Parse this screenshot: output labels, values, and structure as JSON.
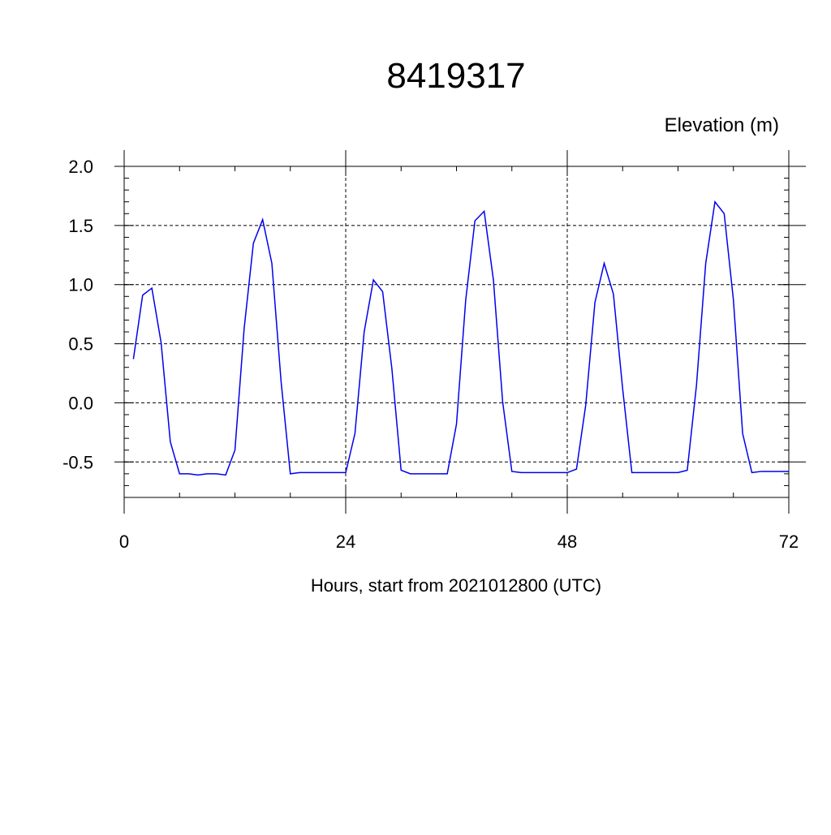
{
  "chart_data": {
    "type": "line",
    "title": "8419317",
    "y_label": "Elevation (m)",
    "x_label": "Hours, start from 2021012800 (UTC)",
    "x": [
      1,
      2,
      3,
      4,
      5,
      6,
      7,
      8,
      9,
      10,
      11,
      12,
      13,
      14,
      15,
      16,
      17,
      18,
      19,
      20,
      21,
      22,
      23,
      24,
      25,
      26,
      27,
      28,
      29,
      30,
      31,
      32,
      33,
      34,
      35,
      36,
      37,
      38,
      39,
      40,
      41,
      42,
      43,
      44,
      45,
      46,
      47,
      48,
      49,
      50,
      51,
      52,
      53,
      54,
      55,
      56,
      57,
      58,
      59,
      60,
      61,
      62,
      63,
      64,
      65,
      66,
      67,
      68,
      69,
      70,
      71,
      72
    ],
    "series": [
      {
        "color": "#0000ee",
        "values": [
          0.37,
          0.91,
          0.97,
          0.51,
          -0.33,
          -0.6,
          -0.6,
          -0.61,
          -0.6,
          -0.6,
          -0.61,
          -0.4,
          0.63,
          1.35,
          1.55,
          1.18,
          0.18,
          -0.6,
          -0.59,
          -0.59,
          -0.59,
          -0.59,
          -0.59,
          -0.59,
          -0.26,
          0.6,
          1.04,
          0.94,
          0.29,
          -0.57,
          -0.6,
          -0.6,
          -0.6,
          -0.6,
          -0.6,
          -0.18,
          0.87,
          1.54,
          1.62,
          1.04,
          0.01,
          -0.58,
          -0.59,
          -0.59,
          -0.59,
          -0.59,
          -0.59,
          -0.59,
          -0.56,
          -0.02,
          0.85,
          1.18,
          0.92,
          0.12,
          -0.59,
          -0.59,
          -0.59,
          -0.59,
          -0.59,
          -0.59,
          -0.57,
          0.15,
          1.18,
          1.7,
          1.6,
          0.87,
          -0.26,
          -0.59,
          -0.58,
          -0.58,
          -0.58,
          -0.58
        ]
      }
    ],
    "xlim": [
      0,
      72
    ],
    "xticks": [
      0,
      24,
      48,
      72
    ],
    "ylim": [
      -0.8,
      2.0
    ],
    "yticks": [
      {
        "value": -0.5,
        "label": "-0.5"
      },
      {
        "value": 0,
        "label": "0.0"
      },
      {
        "value": 0.5,
        "label": "0.5"
      },
      {
        "value": 1,
        "label": "1.0"
      },
      {
        "value": 1.5,
        "label": "1.5"
      },
      {
        "value": 2,
        "label": "2.0"
      }
    ],
    "grid": true
  }
}
